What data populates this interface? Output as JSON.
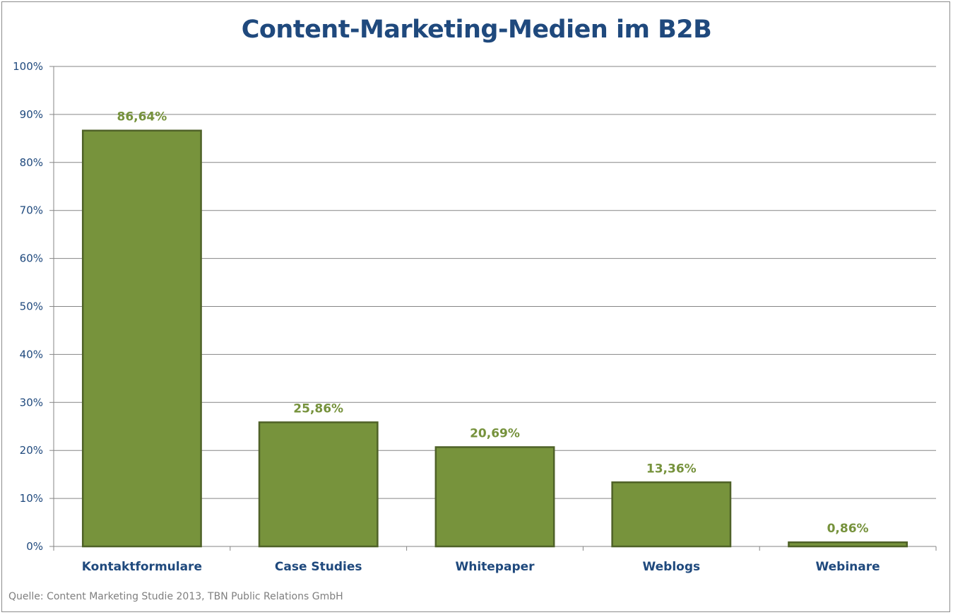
{
  "source": "Quelle: Content Marketing Studie 2013, TBN Public Relations GmbH",
  "colors": {
    "bar_fill": "#77933c",
    "bar_stroke": "#4f6228",
    "title": "#1f497d",
    "axis_text": "#1f497d",
    "data_label": "#76923c",
    "gridline": "#868686"
  },
  "chart_data": {
    "type": "bar",
    "title": "Content-Marketing-Medien im B2B",
    "categories": [
      "Kontaktformulare",
      "Case Studies",
      "Whitepaper",
      "Weblogs",
      "Webinare"
    ],
    "values": [
      86.64,
      25.86,
      20.69,
      13.36,
      0.86
    ],
    "data_labels": [
      "86,64%",
      "25,86%",
      "20,69%",
      "13,36%",
      "0,86%"
    ],
    "ylim": [
      0,
      100
    ],
    "yticks": [
      "0%",
      "10%",
      "20%",
      "30%",
      "40%",
      "50%",
      "60%",
      "70%",
      "80%",
      "90%",
      "100%"
    ],
    "xlabel": "",
    "ylabel": "",
    "grid": true,
    "legend": "none"
  }
}
